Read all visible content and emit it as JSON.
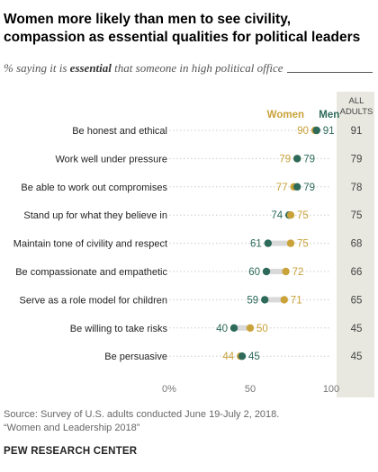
{
  "title": "Women more likely than men to see civility, compassion as essential qualities for political leaders",
  "subtitle_pre": "% saying it is ",
  "subtitle_em": "essential",
  "subtitle_post": " that someone in high political office",
  "legend": {
    "women": "Women",
    "men": "Men",
    "all_line1": "ALL",
    "all_line2": "ADULTS"
  },
  "colors": {
    "women": "#c9a23a",
    "men": "#2d6a5a",
    "connector": "#d9d9d9",
    "gridline": "#cccccc",
    "all_bg": "#e8e8e0"
  },
  "chart_data": {
    "type": "dot",
    "title": "Women more likely than men to see civility, compassion as essential qualities for political leaders",
    "subtitle": "% saying it is essential that someone in high political office",
    "categories": [
      "Be honest and ethical",
      "Work well under pressure",
      "Be able to work out compromises",
      "Stand up for what they believe in",
      "Maintain tone of civility and respect",
      "Be compassionate and empathetic",
      "Serve as a role model for children",
      "Be willing to take risks",
      "Be persuasive"
    ],
    "series": [
      {
        "name": "Women",
        "values": [
          90,
          79,
          77,
          75,
          75,
          72,
          71,
          50,
          44
        ]
      },
      {
        "name": "Men",
        "values": [
          91,
          79,
          79,
          74,
          61,
          60,
          59,
          40,
          45
        ]
      },
      {
        "name": "ALL ADULTS",
        "values": [
          91,
          79,
          78,
          75,
          68,
          66,
          65,
          45,
          45
        ]
      }
    ],
    "x_ticks": [
      "0%",
      "50",
      "100"
    ],
    "xlim": [
      0,
      100
    ]
  },
  "source_lines": [
    "Source: Survey of U.S. adults conducted June 19-July 2, 2018.",
    "“Women and Leadership 2018”"
  ],
  "brand": "PEW RESEARCH CENTER"
}
